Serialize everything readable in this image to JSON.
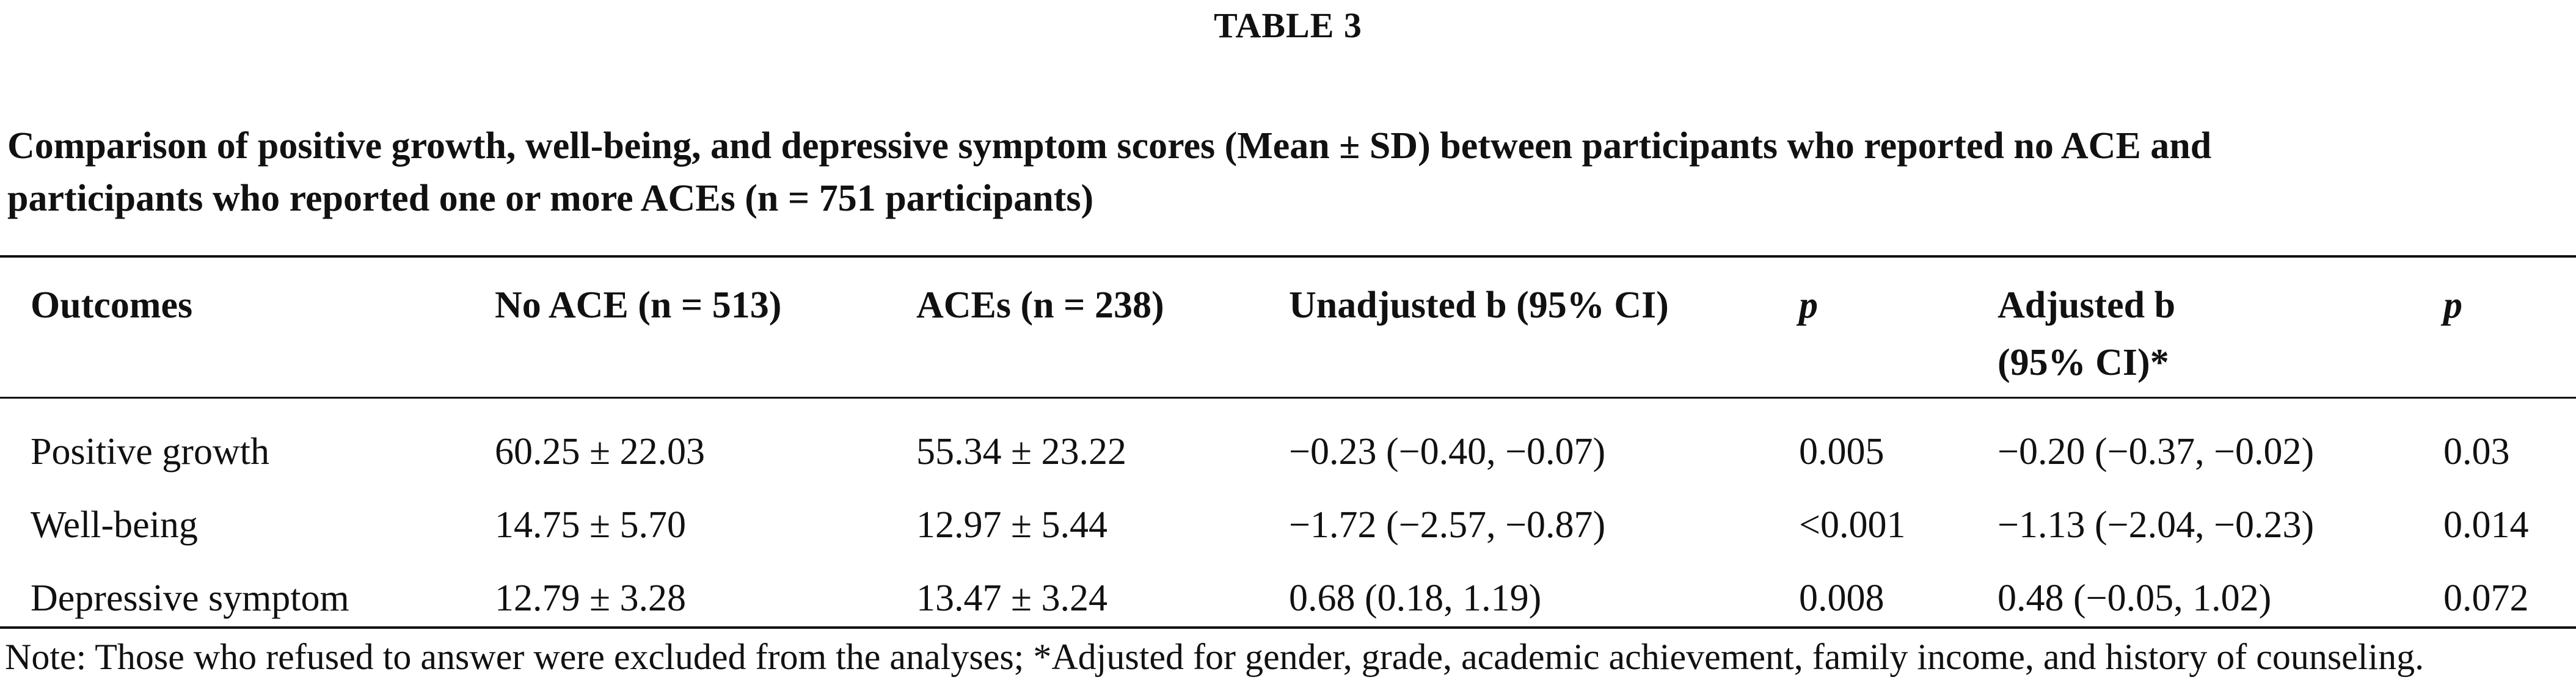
{
  "table_label": "TABLE 3",
  "caption": {
    "line1": "Comparison of positive growth, well-being, and depressive symptom scores (Mean ± SD) between participants who reported no ACE and",
    "line2": "participants who reported one or more ACEs (n = 751 participants)"
  },
  "headers": {
    "outcomes": "Outcomes",
    "no_ace": "No ACE (n = 513)",
    "aces": "ACEs (n = 238)",
    "unadjusted": "Unadjusted b (95% CI)",
    "p1": "p",
    "adjusted_line1": "Adjusted b",
    "adjusted_line2": "(95% CI)*",
    "p2": "p"
  },
  "rows": [
    {
      "outcome": "Positive growth",
      "no_ace": "60.25 ± 22.03",
      "aces": "55.34 ± 23.22",
      "unadjusted": "−0.23 (−0.40, −0.07)",
      "p1": "0.005",
      "adjusted": "−0.20 (−0.37, −0.02)",
      "p2": "0.03"
    },
    {
      "outcome": "Well-being",
      "no_ace": "14.75 ± 5.70",
      "aces": "12.97 ± 5.44",
      "unadjusted": "−1.72 (−2.57, −0.87)",
      "p1": "<0.001",
      "adjusted": "−1.13 (−2.04, −0.23)",
      "p2": "0.014"
    },
    {
      "outcome": "Depressive symptom",
      "no_ace": "12.79 ± 3.28",
      "aces": "13.47 ± 3.24",
      "unadjusted": "0.68 (0.18, 1.19)",
      "p1": "0.008",
      "adjusted": "0.48 (−0.05, 1.02)",
      "p2": "0.072"
    }
  ],
  "note": "Note: Those who refused to answer were excluded from the analyses; *Adjusted for gender, grade, academic achievement, family income, and history of counseling."
}
